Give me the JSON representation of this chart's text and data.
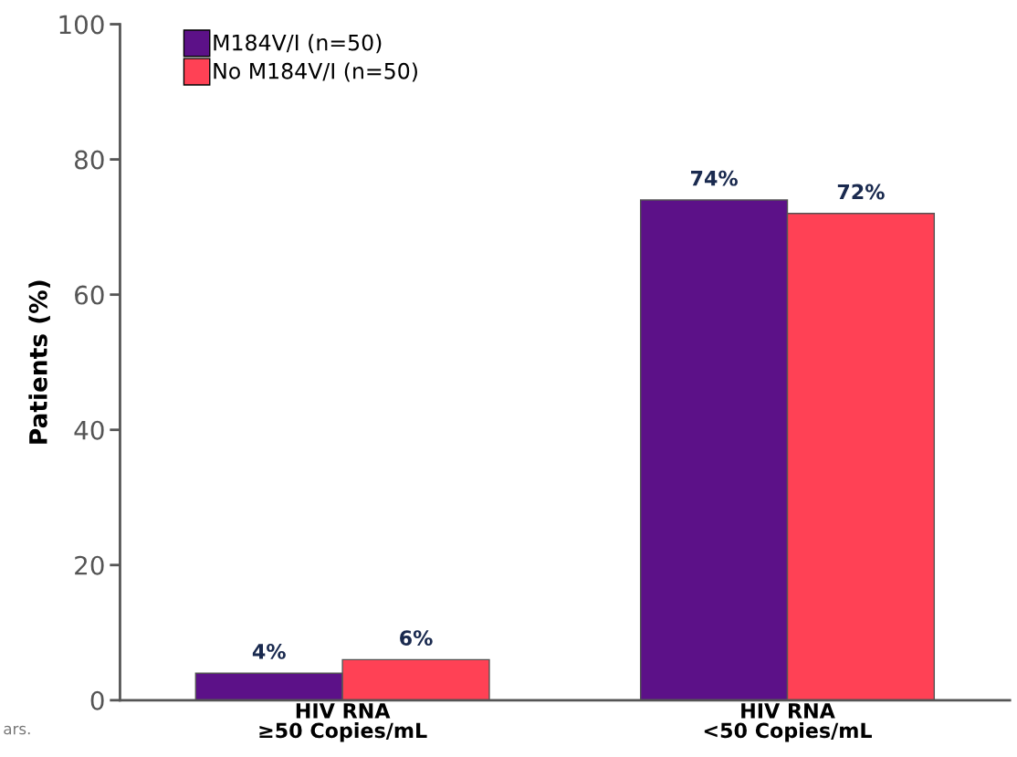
{
  "chart_data": {
    "type": "bar",
    "ylabel": "Patients (%)",
    "categories": [
      "HIV RNA\n≥50 Copies/mL",
      "HIV RNA\n<50 Copies/mL"
    ],
    "series": [
      {
        "name": "M184V/I (n=50)",
        "color": "#5c1188",
        "values": [
          4,
          74
        ],
        "value_labels": [
          "4%",
          "74%"
        ]
      },
      {
        "name": "No M184V/I (n=50)",
        "color": "#ff4155",
        "values": [
          6,
          72
        ],
        "value_labels": [
          "6%",
          "72%"
        ]
      }
    ],
    "ylim": [
      0,
      100
    ],
    "yticks": [
      0,
      20,
      40,
      60,
      80,
      100
    ],
    "grid": false,
    "legend": "top left",
    "annotations": [
      "ars."
    ]
  }
}
